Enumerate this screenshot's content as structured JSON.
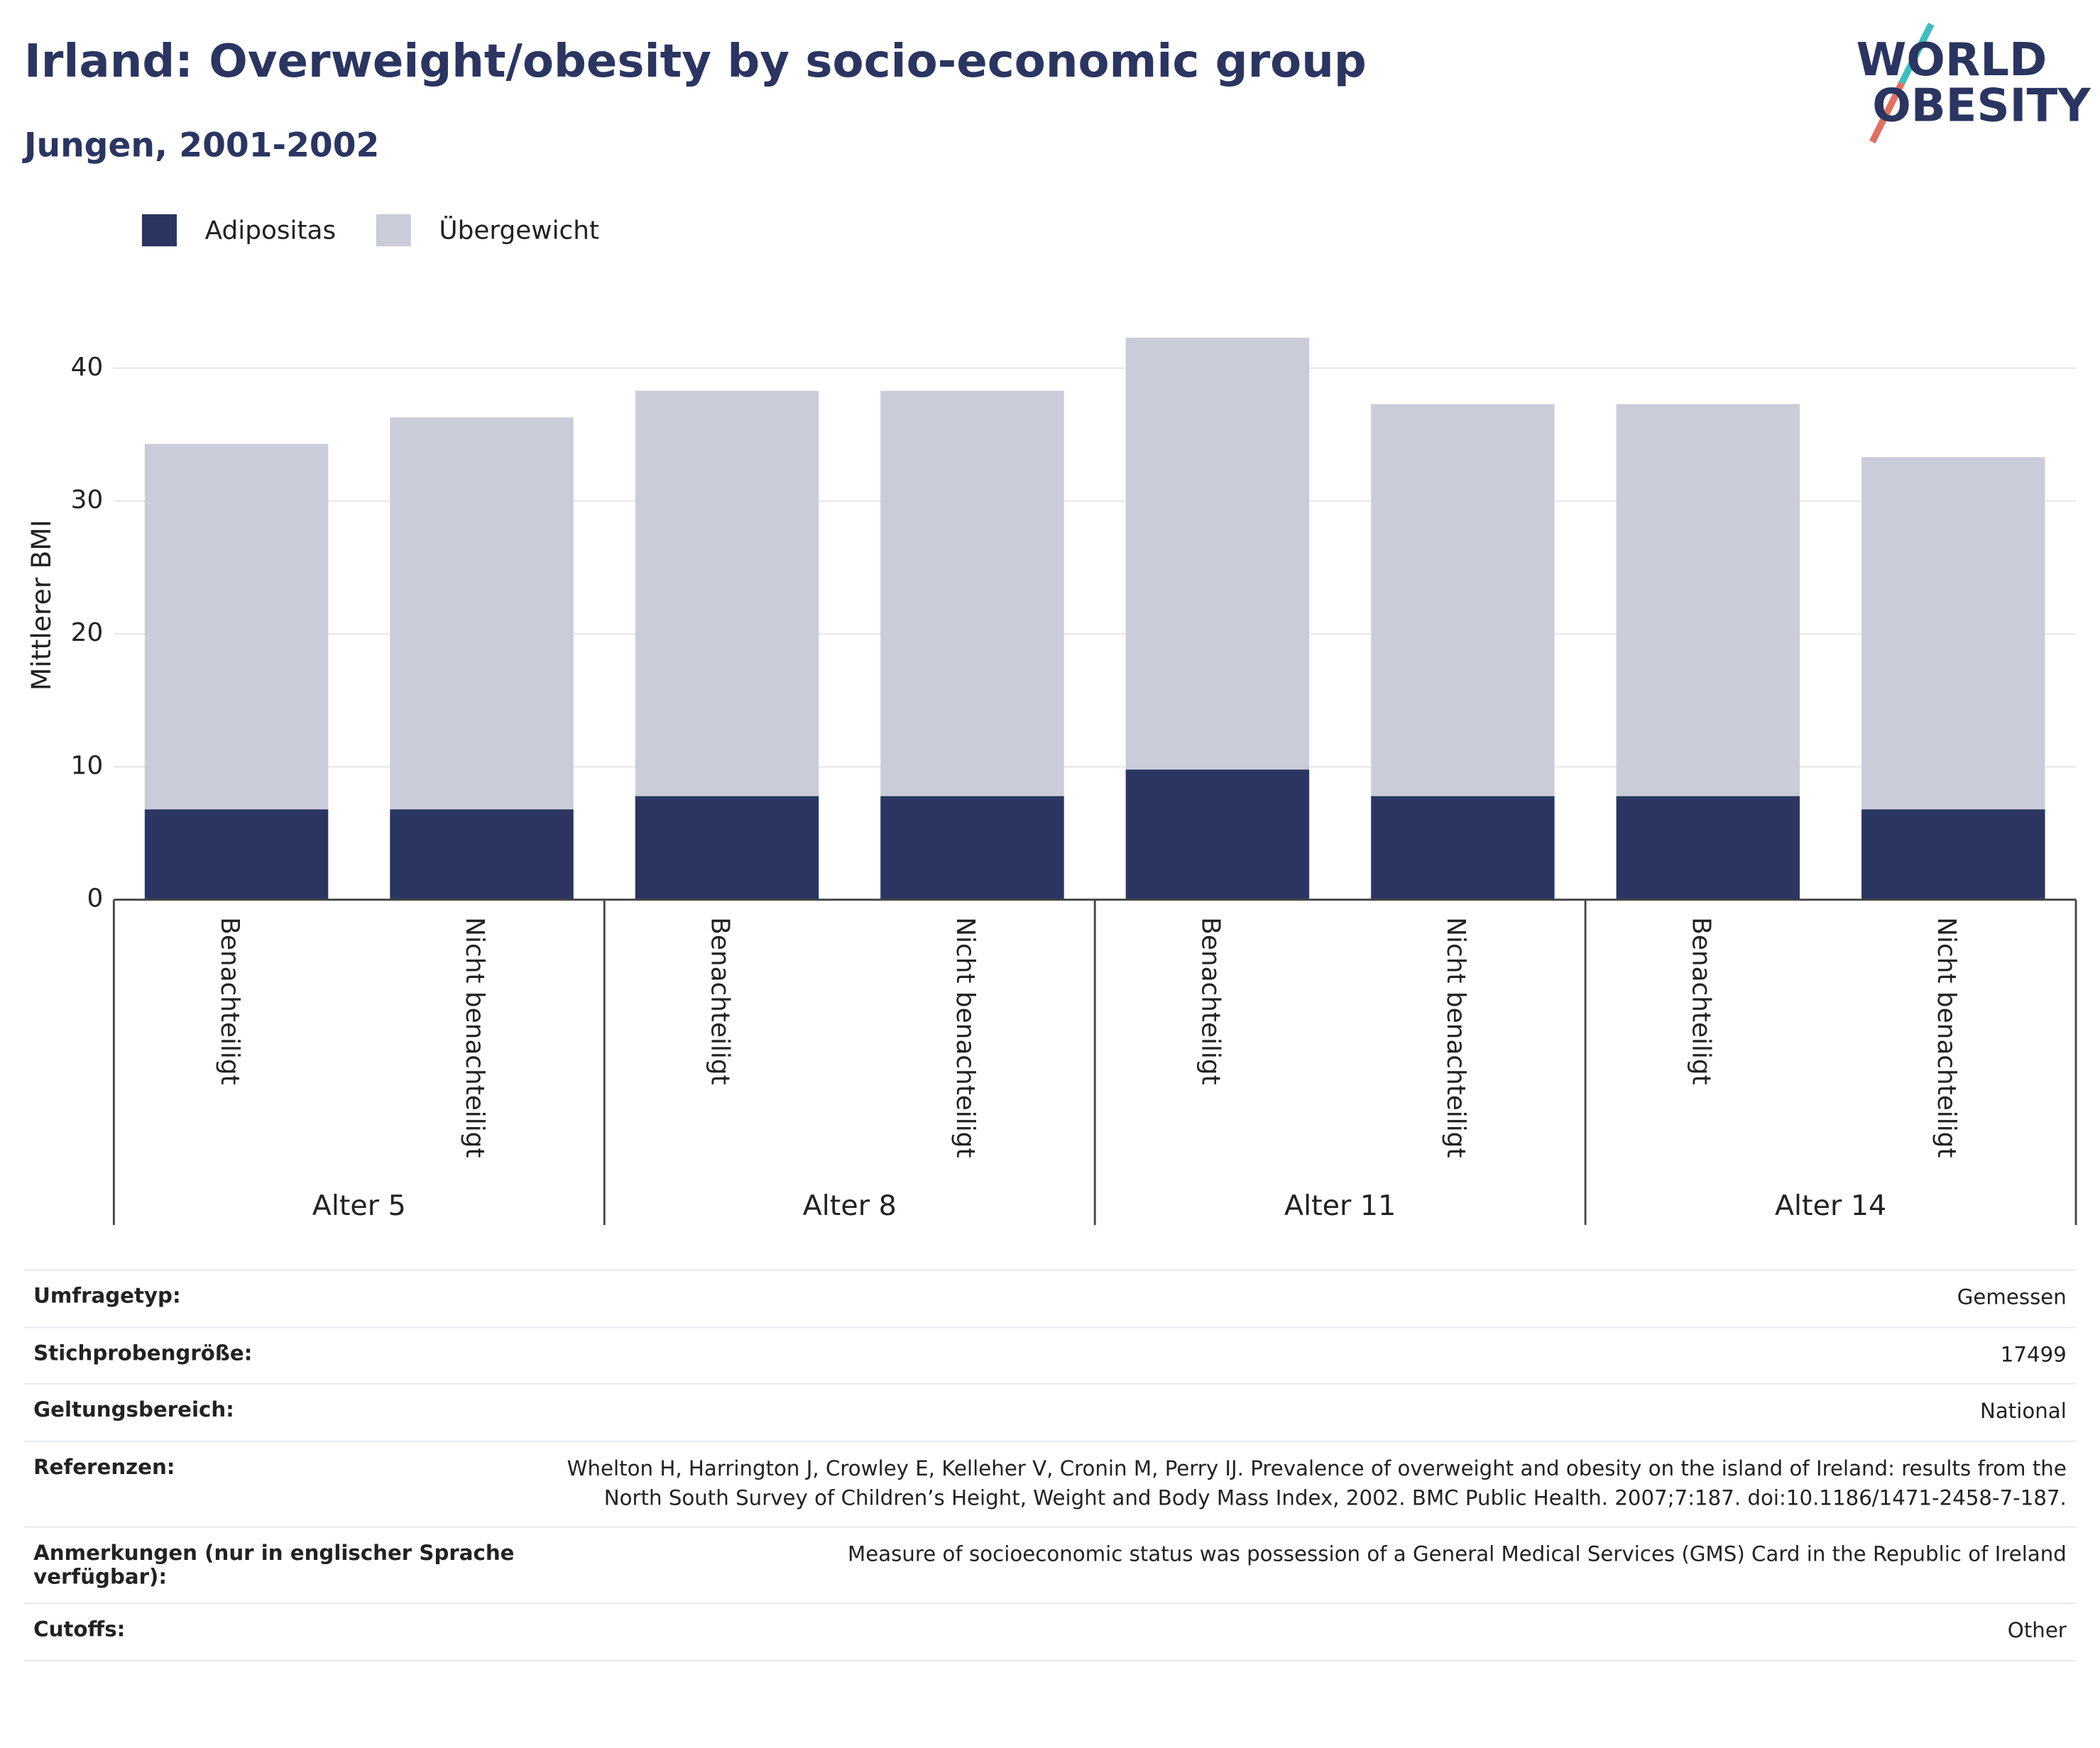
{
  "chart_data": {
    "type": "stacked-bar",
    "title": "Irland: Overweight/obesity by socio-economic group",
    "subtitle": "Jungen, 2001-2002",
    "logo": [
      "WORLD",
      "OBESITY"
    ],
    "ylabel": "Mittlerer BMI",
    "categories": [
      "Benachteiligt",
      "Nicht benachteiligt",
      "Benachteiligt",
      "Nicht benachteiligt",
      "Benachteiligt",
      "Nicht benachteiligt",
      "Benachteiligt",
      "Nicht benachteiligt"
    ],
    "groups": [
      "Alter 5",
      "Alter 8",
      "Alter 11",
      "Alter 14"
    ],
    "series": [
      {
        "name": "Adipositas",
        "color": "#2a3561",
        "values": [
          6.8,
          6.8,
          7.8,
          7.8,
          9.8,
          7.8,
          7.8,
          6.8
        ]
      },
      {
        "name": "Übergewicht",
        "color": "#cbccd9",
        "values": [
          27.5,
          29.5,
          30.5,
          30.5,
          32.5,
          29.5,
          29.5,
          26.5
        ]
      }
    ],
    "ylim": [
      0,
      44
    ],
    "yticks": [
      0,
      10,
      20,
      30,
      40
    ],
    "grid": true
  },
  "table": {
    "rows": [
      {
        "label": "Umfragetyp:",
        "value": "Gemessen"
      },
      {
        "label": "Stichprobengröße:",
        "value": "17499"
      },
      {
        "label": "Geltungsbereich:",
        "value": "National"
      },
      {
        "label": "Referenzen:",
        "value": "Whelton H, Harrington J, Crowley E, Kelleher V, Cronin M, Perry IJ. Prevalence of overweight and obesity on the island of Ireland: results from the North South Survey of Children’s Height, Weight and Body Mass Index, 2002. BMC Public Health. 2007;7:187. doi:10.1186/1471-2458-7-187."
      },
      {
        "label": "Anmerkungen (nur in englischer Sprache verfügbar):",
        "value": "Measure of socioeconomic status was possession of a General Medical Services (GMS) Card in the Republic of Ireland"
      },
      {
        "label": "Cutoffs:",
        "value": "Other"
      }
    ]
  }
}
